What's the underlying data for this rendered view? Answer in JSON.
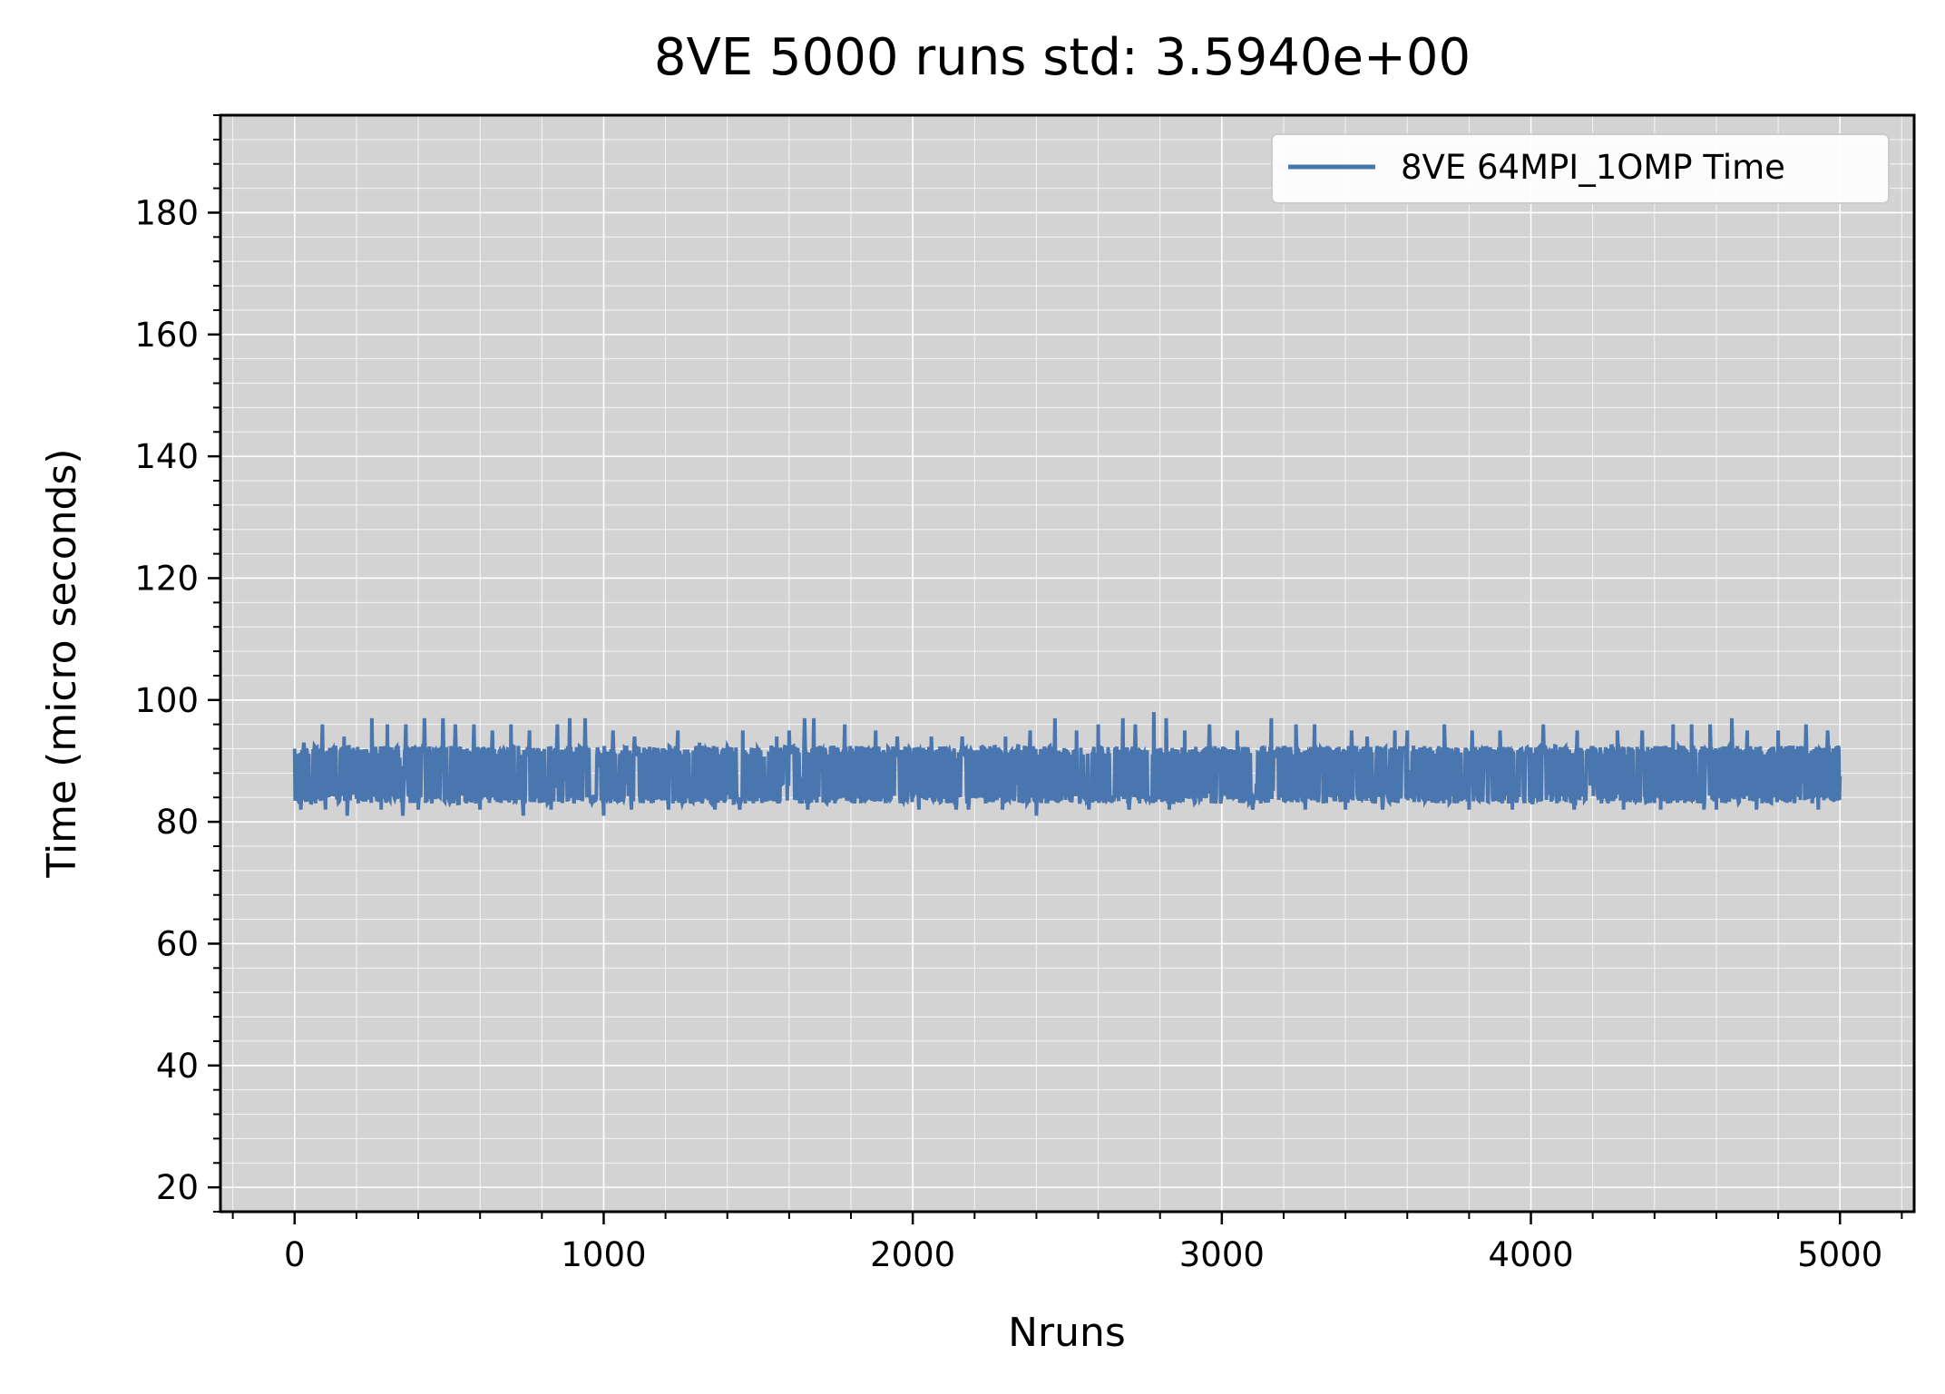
{
  "chart_data": {
    "type": "line",
    "title": "8VE 5000 runs std: 3.5940e+00",
    "xlabel": "Nruns",
    "ylabel": "Time (micro seconds)",
    "xlim": [
      -240,
      5240
    ],
    "ylim": [
      16,
      196
    ],
    "x_ticks": [
      0,
      1000,
      2000,
      3000,
      4000,
      5000
    ],
    "x_tick_labels": [
      "0",
      "1000",
      "2000",
      "3000",
      "4000",
      "5000"
    ],
    "y_ticks": [
      20,
      40,
      60,
      80,
      100,
      120,
      140,
      160,
      180
    ],
    "y_tick_labels": [
      "20",
      "40",
      "60",
      "80",
      "100",
      "120",
      "140",
      "160",
      "180"
    ],
    "grid": true,
    "minor_grid": true,
    "legend_position": "top-right",
    "background_color": "#d3d3d3",
    "series": [
      {
        "name": "8VE 64MPI_1OMP Time",
        "color": "#4a76b0",
        "n_points": 5000,
        "baseline": 87.5,
        "std": 3.594,
        "band": [
          83,
          92.5
        ],
        "min": 81,
        "max": 98,
        "peaks": [
          [
            0,
            92
          ],
          [
            30,
            93
          ],
          [
            90,
            96
          ],
          [
            160,
            94
          ],
          [
            250,
            97
          ],
          [
            300,
            96
          ],
          [
            360,
            96
          ],
          [
            420,
            97
          ],
          [
            480,
            97
          ],
          [
            520,
            96
          ],
          [
            580,
            96
          ],
          [
            640,
            95
          ],
          [
            700,
            96
          ],
          [
            760,
            95
          ],
          [
            850,
            96
          ],
          [
            890,
            97
          ],
          [
            940,
            97
          ],
          [
            1030,
            95
          ],
          [
            1100,
            94
          ],
          [
            1240,
            95
          ],
          [
            1310,
            93
          ],
          [
            1450,
            95
          ],
          [
            1560,
            94
          ],
          [
            1600,
            95
          ],
          [
            1650,
            97
          ],
          [
            1680,
            97
          ],
          [
            1780,
            96
          ],
          [
            1880,
            95
          ],
          [
            1950,
            94
          ],
          [
            2060,
            94
          ],
          [
            2160,
            94
          ],
          [
            2300,
            94
          ],
          [
            2380,
            95
          ],
          [
            2460,
            97
          ],
          [
            2530,
            95
          ],
          [
            2600,
            96
          ],
          [
            2680,
            97
          ],
          [
            2720,
            96
          ],
          [
            2780,
            98
          ],
          [
            2820,
            97
          ],
          [
            2880,
            95
          ],
          [
            2960,
            96
          ],
          [
            3050,
            95
          ],
          [
            3160,
            97
          ],
          [
            3240,
            96
          ],
          [
            3300,
            96
          ],
          [
            3420,
            95
          ],
          [
            3470,
            94
          ],
          [
            3560,
            95
          ],
          [
            3600,
            95
          ],
          [
            3720,
            96
          ],
          [
            3810,
            95
          ],
          [
            3900,
            95
          ],
          [
            4040,
            96
          ],
          [
            4150,
            95
          ],
          [
            4280,
            95
          ],
          [
            4360,
            95
          ],
          [
            4460,
            96
          ],
          [
            4520,
            96
          ],
          [
            4580,
            96
          ],
          [
            4650,
            97
          ],
          [
            4700,
            95
          ],
          [
            4800,
            95
          ],
          [
            4890,
            96
          ],
          [
            4960,
            95
          ]
        ],
        "troughs": [
          [
            20,
            82
          ],
          [
            100,
            82
          ],
          [
            170,
            81
          ],
          [
            280,
            82
          ],
          [
            350,
            81
          ],
          [
            400,
            82
          ],
          [
            520,
            82
          ],
          [
            600,
            82
          ],
          [
            740,
            81
          ],
          [
            830,
            82
          ],
          [
            1000,
            81
          ],
          [
            1090,
            82
          ],
          [
            1210,
            82
          ],
          [
            1360,
            82
          ],
          [
            1440,
            82
          ],
          [
            1560,
            82
          ],
          [
            1660,
            82
          ],
          [
            1780,
            82
          ],
          [
            2020,
            82
          ],
          [
            2140,
            82
          ],
          [
            2180,
            82
          ],
          [
            2290,
            82
          ],
          [
            2400,
            81
          ],
          [
            2570,
            82
          ],
          [
            2700,
            82
          ],
          [
            2830,
            82
          ],
          [
            3100,
            82
          ],
          [
            3270,
            82
          ],
          [
            3400,
            82
          ],
          [
            3520,
            82
          ],
          [
            3720,
            81
          ],
          [
            3800,
            82
          ],
          [
            3940,
            82
          ],
          [
            4140,
            82
          ],
          [
            4300,
            82
          ],
          [
            4420,
            82
          ],
          [
            4560,
            82
          ],
          [
            4600,
            82
          ],
          [
            4730,
            82
          ],
          [
            4800,
            82
          ],
          [
            4930,
            82
          ]
        ]
      }
    ]
  }
}
